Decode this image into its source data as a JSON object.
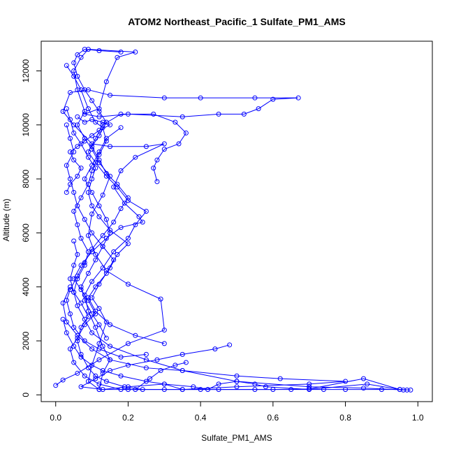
{
  "chart_data": {
    "type": "line",
    "title": "ATOM2 Northeast_Pacific_1 Sulfate_PM1_AMS",
    "xlabel": "Sulfate_PM1_AMS",
    "ylabel": "Altitude (m)",
    "xlim": [
      -0.04,
      1.04
    ],
    "ylim": [
      -250,
      13100
    ],
    "x_ticks": [
      0,
      0.2,
      0.4,
      0.6,
      0.8,
      1.0
    ],
    "x_tick_labels": [
      "0.0",
      "0.2",
      "0.4",
      "0.6",
      "0.8",
      "1.0"
    ],
    "y_ticks": [
      0,
      2000,
      4000,
      6000,
      8000,
      10000,
      12000
    ],
    "y_tick_labels": [
      "0",
      "2000",
      "4000",
      "6000",
      "8000",
      "10000",
      "12000"
    ],
    "grid": false,
    "legend": "none",
    "color": "#0000ff",
    "marker": "open-circle",
    "series": [
      {
        "points": [
          [
            0.0,
            350
          ],
          [
            0.02,
            550
          ],
          [
            0.06,
            800
          ],
          [
            0.12,
            1300
          ],
          [
            0.2,
            1900
          ],
          [
            0.3,
            2400
          ],
          [
            0.29,
            3550
          ],
          [
            0.2,
            4100
          ],
          [
            0.14,
            4600
          ],
          [
            0.11,
            5200
          ],
          [
            0.09,
            5900
          ],
          [
            0.1,
            6700
          ],
          [
            0.13,
            7400
          ],
          [
            0.15,
            8100
          ],
          [
            0.12,
            8600
          ],
          [
            0.1,
            9100
          ],
          [
            0.08,
            9500
          ],
          [
            0.06,
            10000
          ],
          [
            0.08,
            10500
          ],
          [
            0.06,
            11300
          ],
          [
            0.05,
            12000
          ],
          [
            0.07,
            12500
          ],
          [
            0.09,
            12800
          ],
          [
            0.22,
            12700
          ],
          [
            0.17,
            12500
          ],
          [
            0.14,
            11600
          ],
          [
            0.12,
            10600
          ],
          [
            0.08,
            10400
          ],
          [
            0.12,
            10300
          ],
          [
            0.2,
            10400
          ],
          [
            0.35,
            10300
          ],
          [
            0.45,
            10400
          ],
          [
            0.52,
            10400
          ],
          [
            0.56,
            10600
          ],
          [
            0.6,
            10950
          ],
          [
            0.67,
            11000
          ],
          [
            0.55,
            11000
          ],
          [
            0.4,
            11000
          ],
          [
            0.3,
            11000
          ],
          [
            0.15,
            11100
          ],
          [
            0.09,
            11300
          ],
          [
            0.04,
            11200
          ],
          [
            0.02,
            10500
          ],
          [
            0.05,
            10000
          ],
          [
            0.1,
            9300
          ],
          [
            0.15,
            9200
          ],
          [
            0.25,
            9200
          ],
          [
            0.3,
            9300
          ],
          [
            0.22,
            8800
          ],
          [
            0.18,
            8300
          ],
          [
            0.16,
            7700
          ],
          [
            0.19,
            7100
          ],
          [
            0.23,
            6600
          ],
          [
            0.24,
            6400
          ],
          [
            0.18,
            6200
          ],
          [
            0.14,
            5800
          ],
          [
            0.1,
            5300
          ],
          [
            0.07,
            4800
          ],
          [
            0.05,
            4300
          ],
          [
            0.07,
            3900
          ],
          [
            0.09,
            3500
          ],
          [
            0.11,
            3000
          ],
          [
            0.08,
            2600
          ],
          [
            0.06,
            2100
          ],
          [
            0.04,
            1700
          ],
          [
            0.05,
            1200
          ],
          [
            0.08,
            700
          ],
          [
            0.12,
            400
          ],
          [
            0.18,
            200
          ],
          [
            0.3,
            200
          ],
          [
            0.45,
            200
          ],
          [
            0.6,
            200
          ],
          [
            0.7,
            220
          ],
          [
            0.85,
            600
          ],
          [
            0.95,
            200
          ],
          [
            0.98,
            180
          ]
        ]
      },
      {
        "points": [
          [
            0.97,
            180
          ],
          [
            0.85,
            250
          ],
          [
            0.7,
            300
          ],
          [
            0.5,
            500
          ],
          [
            0.35,
            900
          ],
          [
            0.25,
            1300
          ],
          [
            0.15,
            1800
          ],
          [
            0.1,
            2300
          ],
          [
            0.08,
            2800
          ],
          [
            0.06,
            3300
          ],
          [
            0.05,
            3800
          ],
          [
            0.06,
            4300
          ],
          [
            0.08,
            4800
          ],
          [
            0.09,
            5300
          ],
          [
            0.07,
            5800
          ],
          [
            0.06,
            6300
          ],
          [
            0.05,
            6800
          ],
          [
            0.07,
            7300
          ],
          [
            0.09,
            7800
          ],
          [
            0.1,
            8300
          ],
          [
            0.12,
            8900
          ],
          [
            0.14,
            9400
          ],
          [
            0.13,
            9900
          ],
          [
            0.11,
            10100
          ],
          [
            0.09,
            10600
          ],
          [
            0.07,
            11300
          ],
          [
            0.05,
            11800
          ],
          [
            0.03,
            12200
          ]
        ]
      },
      {
        "points": [
          [
            0.04,
            4000
          ],
          [
            0.02,
            3400
          ],
          [
            0.03,
            2700
          ],
          [
            0.06,
            2200
          ],
          [
            0.1,
            1700
          ],
          [
            0.15,
            1300
          ],
          [
            0.25,
            1000
          ],
          [
            0.35,
            900
          ],
          [
            0.5,
            700
          ],
          [
            0.62,
            600
          ],
          [
            0.8,
            500
          ],
          [
            0.7,
            400
          ],
          [
            0.5,
            300
          ],
          [
            0.35,
            200
          ],
          [
            0.2,
            200
          ],
          [
            0.12,
            200
          ],
          [
            0.09,
            500
          ],
          [
            0.1,
            1100
          ],
          [
            0.12,
            1900
          ],
          [
            0.14,
            2700
          ],
          [
            0.12,
            3200
          ],
          [
            0.1,
            3600
          ],
          [
            0.12,
            4100
          ],
          [
            0.15,
            4700
          ],
          [
            0.17,
            5200
          ],
          [
            0.2,
            5600
          ],
          [
            0.15,
            6100
          ],
          [
            0.12,
            6600
          ],
          [
            0.1,
            7000
          ],
          [
            0.09,
            7500
          ],
          [
            0.1,
            8000
          ],
          [
            0.11,
            8400
          ],
          [
            0.09,
            8800
          ],
          [
            0.07,
            9300
          ],
          [
            0.05,
            9700
          ],
          [
            0.04,
            10200
          ],
          [
            0.03,
            10600
          ]
        ]
      },
      {
        "points": [
          [
            0.48,
            1850
          ],
          [
            0.44,
            1700
          ],
          [
            0.35,
            1500
          ],
          [
            0.28,
            1300
          ],
          [
            0.2,
            1100
          ],
          [
            0.15,
            900
          ],
          [
            0.11,
            600
          ],
          [
            0.07,
            300
          ],
          [
            0.13,
            200
          ],
          [
            0.2,
            300
          ],
          [
            0.3,
            400
          ],
          [
            0.38,
            300
          ],
          [
            0.42,
            200
          ],
          [
            0.45,
            400
          ],
          [
            0.5,
            500
          ],
          [
            0.55,
            400
          ],
          [
            0.58,
            300
          ],
          [
            0.7,
            200
          ],
          [
            0.86,
            400
          ],
          [
            0.96,
            180
          ]
        ]
      },
      {
        "points": [
          [
            0.25,
            1500
          ],
          [
            0.18,
            1400
          ],
          [
            0.12,
            1700
          ],
          [
            0.08,
            2000
          ],
          [
            0.05,
            2500
          ],
          [
            0.04,
            3000
          ],
          [
            0.03,
            3500
          ],
          [
            0.04,
            3900
          ],
          [
            0.06,
            4400
          ],
          [
            0.08,
            4900
          ],
          [
            0.1,
            5400
          ],
          [
            0.13,
            5900
          ],
          [
            0.16,
            6400
          ],
          [
            0.18,
            6900
          ],
          [
            0.2,
            7300
          ],
          [
            0.17,
            7800
          ],
          [
            0.14,
            8200
          ],
          [
            0.12,
            8700
          ],
          [
            0.1,
            9200
          ],
          [
            0.12,
            9600
          ],
          [
            0.14,
            10100
          ],
          [
            0.12,
            10500
          ],
          [
            0.1,
            10900
          ],
          [
            0.08,
            11300
          ],
          [
            0.06,
            11800
          ],
          [
            0.05,
            12300
          ],
          [
            0.06,
            12600
          ],
          [
            0.08,
            12800
          ],
          [
            0.12,
            12750
          ],
          [
            0.18,
            12700
          ]
        ]
      },
      {
        "points": [
          [
            0.3,
            1900
          ],
          [
            0.22,
            2200
          ],
          [
            0.15,
            2600
          ],
          [
            0.11,
            3100
          ],
          [
            0.09,
            3600
          ],
          [
            0.11,
            4000
          ],
          [
            0.14,
            4500
          ],
          [
            0.16,
            5000
          ],
          [
            0.13,
            5500
          ],
          [
            0.1,
            6000
          ],
          [
            0.08,
            6500
          ],
          [
            0.06,
            7000
          ],
          [
            0.05,
            7500
          ],
          [
            0.04,
            8000
          ],
          [
            0.03,
            8500
          ],
          [
            0.05,
            9000
          ],
          [
            0.04,
            9500
          ],
          [
            0.03,
            10000
          ]
        ]
      },
      {
        "points": [
          [
            0.12,
            200
          ],
          [
            0.13,
            800
          ],
          [
            0.15,
            1300
          ],
          [
            0.13,
            1800
          ],
          [
            0.11,
            2500
          ],
          [
            0.09,
            3100
          ],
          [
            0.08,
            3700
          ],
          [
            0.1,
            4200
          ],
          [
            0.13,
            4700
          ],
          [
            0.16,
            5300
          ],
          [
            0.2,
            5800
          ],
          [
            0.22,
            6300
          ],
          [
            0.25,
            6800
          ],
          [
            0.2,
            7200
          ],
          [
            0.17,
            7700
          ],
          [
            0.14,
            8100
          ],
          [
            0.11,
            8600
          ],
          [
            0.09,
            9000
          ],
          [
            0.11,
            9500
          ],
          [
            0.13,
            10000
          ],
          [
            0.18,
            10400
          ],
          [
            0.27,
            10400
          ],
          [
            0.33,
            10100
          ],
          [
            0.36,
            9700
          ],
          [
            0.34,
            9300
          ],
          [
            0.3,
            9100
          ],
          [
            0.28,
            8700
          ],
          [
            0.27,
            8400
          ],
          [
            0.28,
            7900
          ]
        ]
      },
      {
        "points": [
          [
            0.02,
            2800
          ],
          [
            0.03,
            2300
          ],
          [
            0.05,
            1800
          ],
          [
            0.07,
            1400
          ],
          [
            0.1,
            1100
          ],
          [
            0.13,
            900
          ],
          [
            0.18,
            700
          ],
          [
            0.25,
            500
          ],
          [
            0.3,
            400
          ],
          [
            0.35,
            200
          ],
          [
            0.4,
            200
          ],
          [
            0.55,
            200
          ],
          [
            0.65,
            200
          ],
          [
            0.74,
            200
          ],
          [
            0.8,
            200
          ],
          [
            0.9,
            200
          ],
          [
            0.95,
            200
          ]
        ]
      },
      {
        "points": [
          [
            0.05,
            5700
          ],
          [
            0.06,
            5200
          ],
          [
            0.05,
            4800
          ],
          [
            0.04,
            4300
          ],
          [
            0.05,
            3800
          ],
          [
            0.07,
            3400
          ],
          [
            0.09,
            2900
          ],
          [
            0.07,
            2500
          ],
          [
            0.06,
            2000
          ],
          [
            0.07,
            1500
          ],
          [
            0.09,
            1000
          ],
          [
            0.11,
            700
          ],
          [
            0.14,
            500
          ],
          [
            0.19,
            300
          ],
          [
            0.24,
            200
          ],
          [
            0.22,
            200
          ],
          [
            0.26,
            600
          ],
          [
            0.29,
            900
          ],
          [
            0.33,
            1100
          ],
          [
            0.36,
            1200
          ]
        ]
      },
      {
        "points": [
          [
            0.18,
            9900
          ],
          [
            0.14,
            9500
          ],
          [
            0.12,
            9000
          ],
          [
            0.1,
            8500
          ],
          [
            0.08,
            8000
          ],
          [
            0.1,
            7500
          ],
          [
            0.12,
            7000
          ],
          [
            0.14,
            6500
          ],
          [
            0.15,
            6000
          ],
          [
            0.13,
            5500
          ],
          [
            0.11,
            5000
          ],
          [
            0.09,
            4500
          ],
          [
            0.07,
            4000
          ],
          [
            0.08,
            3500
          ],
          [
            0.1,
            3000
          ],
          [
            0.12,
            2600
          ],
          [
            0.14,
            2100
          ]
        ]
      },
      {
        "points": [
          [
            0.06,
            10300
          ],
          [
            0.08,
            10100
          ],
          [
            0.1,
            10200
          ],
          [
            0.13,
            10100
          ],
          [
            0.15,
            10000
          ],
          [
            0.12,
            9800
          ],
          [
            0.1,
            9600
          ],
          [
            0.08,
            9400
          ],
          [
            0.06,
            9200
          ],
          [
            0.04,
            9000
          ],
          [
            0.05,
            8700
          ],
          [
            0.07,
            8400
          ],
          [
            0.06,
            8100
          ],
          [
            0.04,
            7800
          ],
          [
            0.03,
            7500
          ]
        ]
      }
    ]
  }
}
